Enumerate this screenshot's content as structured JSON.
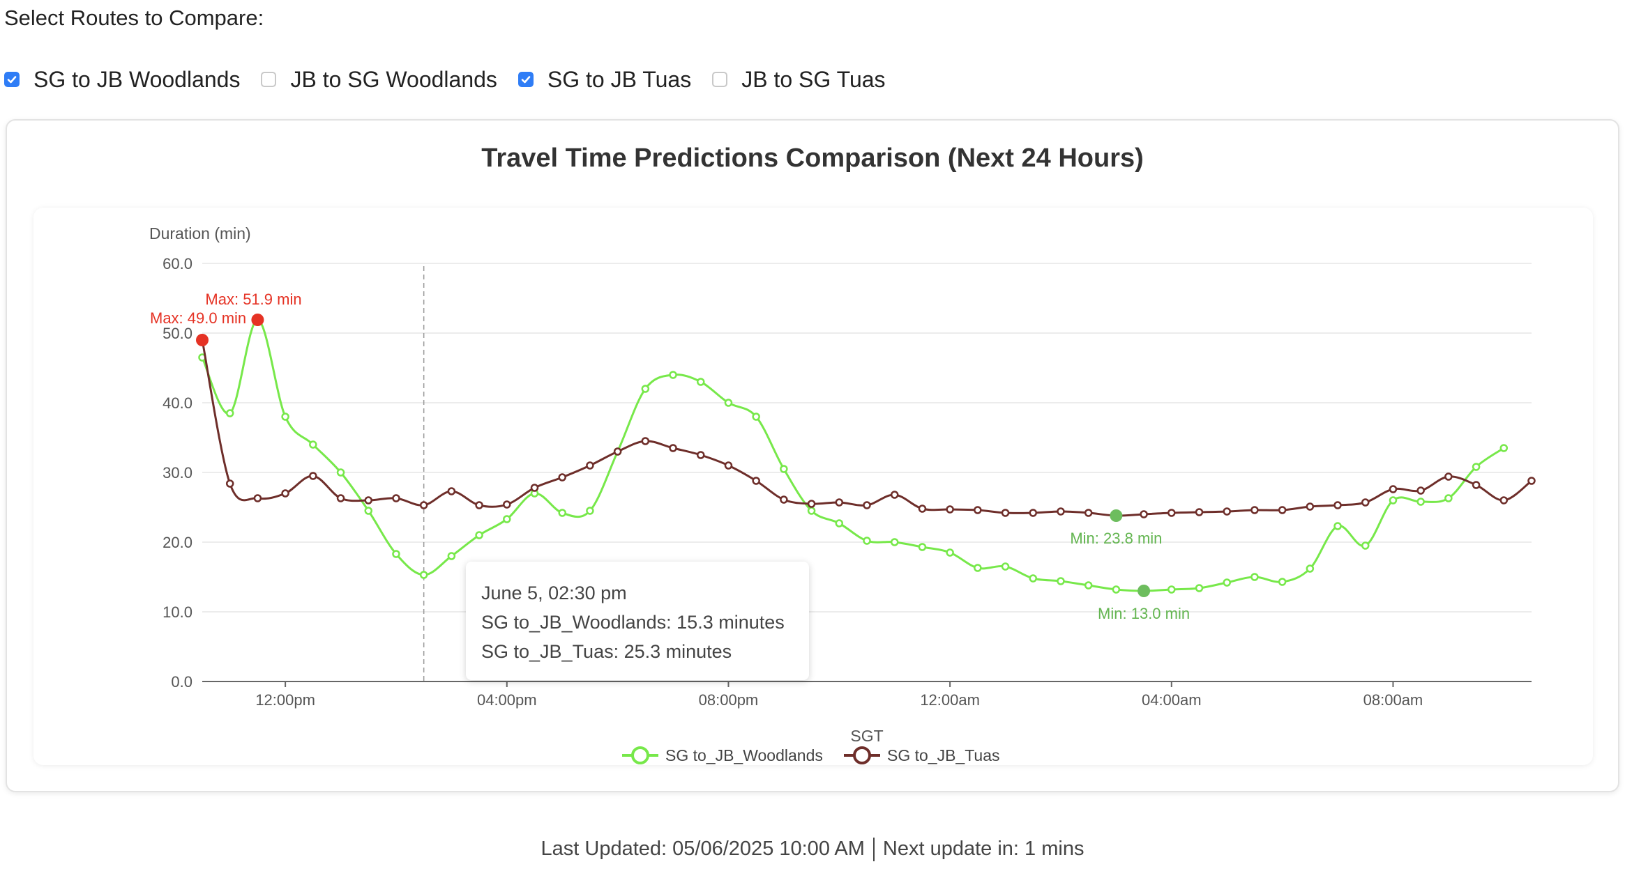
{
  "header": {
    "select_label": "Select Routes to Compare:"
  },
  "routes": [
    {
      "label": "SG to JB Woodlands",
      "checked": true
    },
    {
      "label": "JB to SG Woodlands",
      "checked": false
    },
    {
      "label": "SG to JB Tuas",
      "checked": true
    },
    {
      "label": "JB to SG Tuas",
      "checked": false
    }
  ],
  "chart_data": {
    "type": "line",
    "title": "Travel Time Predictions Comparison (Next 24 Hours)",
    "ylabel": "Duration (min)",
    "xlabel": "SGT",
    "ylim": [
      0,
      60
    ],
    "y_ticks": [
      "0.0",
      "10.0",
      "20.0",
      "30.0",
      "40.0",
      "50.0",
      "60.0"
    ],
    "x_ticks": [
      {
        "hour": 12,
        "label": "12:00pm"
      },
      {
        "hour": 16,
        "label": "04:00pm"
      },
      {
        "hour": 20,
        "label": "08:00pm"
      },
      {
        "hour": 24,
        "label": "12:00am"
      },
      {
        "hour": 28,
        "label": "04:00am"
      },
      {
        "hour": 32,
        "label": "08:00am"
      }
    ],
    "x_start_hour": 10.5,
    "x_step_hours": 0.5,
    "grid": true,
    "legend_position": "bottom",
    "series": [
      {
        "name": "SG to_JB_Woodlands",
        "color": "#77e84a",
        "values": [
          46.5,
          38.5,
          51.9,
          38.0,
          34.0,
          30.0,
          24.5,
          18.3,
          15.3,
          18.0,
          21.0,
          23.3,
          27.0,
          24.2,
          24.5,
          33.0,
          42.0,
          44.0,
          43.0,
          40.0,
          38.0,
          30.5,
          24.5,
          22.7,
          20.2,
          20.0,
          19.3,
          18.5,
          16.3,
          16.5,
          14.8,
          14.4,
          13.8,
          13.2,
          13.0,
          13.2,
          13.4,
          14.2,
          15.0,
          14.3,
          16.2,
          22.3,
          19.5,
          26.0,
          25.8,
          26.3,
          30.8,
          33.5
        ],
        "min": {
          "index": 34,
          "value": 13.0,
          "label": "Min: 13.0 min"
        },
        "max": {
          "index": 2,
          "value": 51.9,
          "label": "Max: 51.9 min"
        }
      },
      {
        "name": "SG to_JB_Tuas",
        "color": "#6e2e2a",
        "values": [
          49.0,
          28.4,
          26.3,
          27.0,
          29.5,
          26.3,
          26.0,
          26.3,
          25.3,
          27.3,
          25.3,
          25.4,
          27.8,
          29.3,
          31.0,
          33.0,
          34.5,
          33.5,
          32.5,
          31.0,
          28.8,
          26.1,
          25.5,
          25.7,
          25.3,
          26.8,
          24.8,
          24.7,
          24.6,
          24.2,
          24.2,
          24.4,
          24.2,
          23.8,
          24.0,
          24.2,
          24.3,
          24.4,
          24.6,
          24.6,
          25.1,
          25.3,
          25.7,
          27.6,
          27.4,
          29.4,
          28.2,
          26.0,
          28.8
        ],
        "min": {
          "index": 33,
          "value": 23.8,
          "label": "Min: 23.8 min"
        },
        "max": {
          "index": 0,
          "value": 49.0,
          "label": "Max: 49.0 min"
        }
      }
    ],
    "hover_index": 8
  },
  "tooltip": {
    "title": "June 5, 02:30 pm",
    "line1": "SG to_JB_Woodlands: 15.3 minutes",
    "line2": "SG to_JB_Tuas: 25.3 minutes"
  },
  "colors": {
    "max_marker": "#e53224",
    "min_marker": "#6dbd5e",
    "min_label": "#63b550",
    "checkbox": "#2f7df6"
  },
  "footer": {
    "last_updated": "Last Updated: 05/06/2025 10:00 AM",
    "next_update": "Next update in: 1 mins"
  }
}
